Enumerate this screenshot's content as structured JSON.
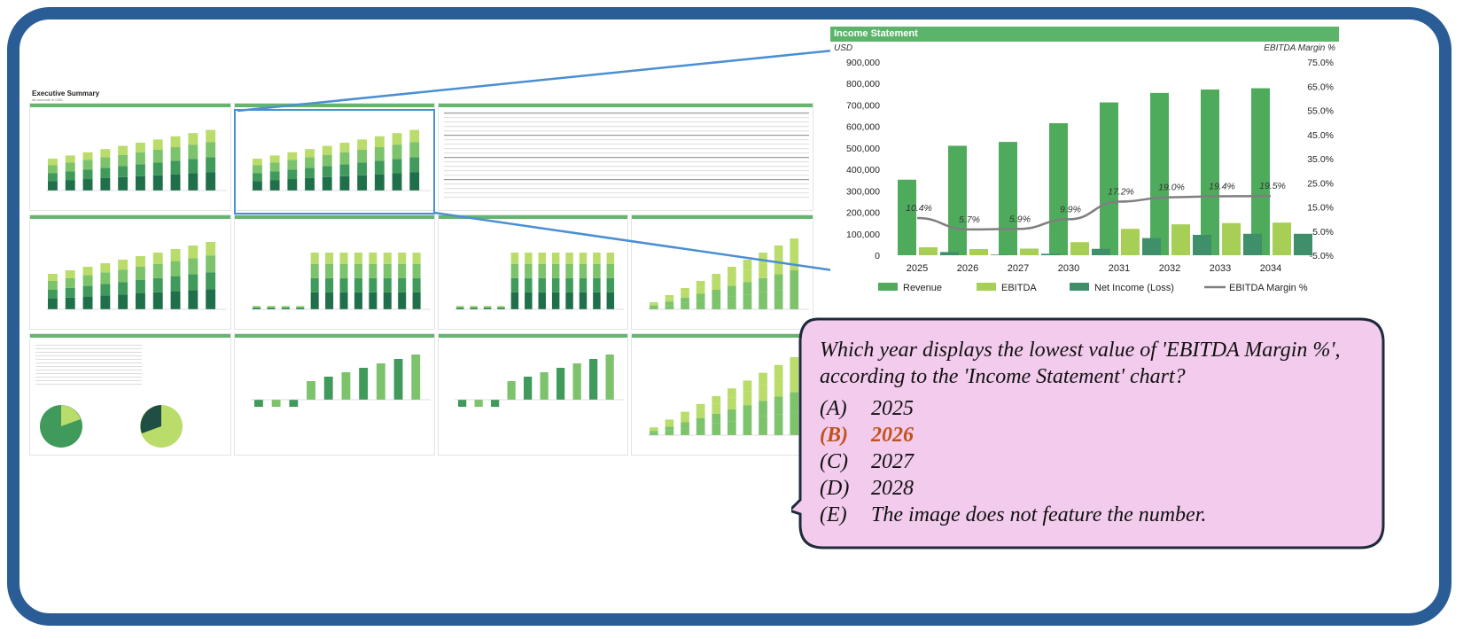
{
  "colors": {
    "frame": "#2a5d95",
    "revenue": "#4fab5c",
    "ebitda": "#a7cf55",
    "net_income": "#3f8f6b",
    "margin_line": "#7f7f7f",
    "header_green": "#5cb36a",
    "bubble_fill": "#f2cbed",
    "bubble_border": "#1f2a3a",
    "answer_highlight": "#c0531c",
    "connector": "#4a8fd3"
  },
  "dashboard": {
    "title": "Executive Summary",
    "subtitle": "All amounts in USD"
  },
  "chart_data": {
    "type": "bar",
    "title": "Income Statement",
    "y_left_label": "USD",
    "y_right_label": "EBITDA Margin %",
    "categories": [
      "2025",
      "2026",
      "2027",
      "2030",
      "2031",
      "2032",
      "2033",
      "2034"
    ],
    "ylim": [
      0,
      900000
    ],
    "y_right_lim": [
      -5.0,
      75.0
    ],
    "y_ticks": [
      "900,000",
      "800,000",
      "700,000",
      "600,000",
      "500,000",
      "400,000",
      "300,000",
      "200,000",
      "100,000",
      "0"
    ],
    "y_right_ticks": [
      "75.0%",
      "65.0%",
      "55.0%",
      "45.0%",
      "35.0%",
      "25.0%",
      "15.0%",
      "5.0%",
      "-5.0%"
    ],
    "series": [
      {
        "name": "Revenue",
        "type": "bar",
        "values": [
          352000,
          510000,
          528000,
          615000,
          712000,
          756000,
          772000,
          778000
        ]
      },
      {
        "name": "EBITDA",
        "type": "bar",
        "values": [
          37000,
          29000,
          31000,
          61000,
          123000,
          144000,
          150000,
          152000
        ]
      },
      {
        "name": "Net Income (Loss)",
        "type": "bar",
        "values": [
          15000,
          3000,
          7000,
          30000,
          80000,
          95000,
          100000,
          100000
        ]
      },
      {
        "name": "EBITDA Margin %",
        "type": "line",
        "axis": "right",
        "values": [
          10.4,
          5.7,
          5.9,
          9.9,
          17.2,
          19.0,
          19.4,
          19.5
        ]
      }
    ],
    "data_labels": [
      "10.4%",
      "5.7%",
      "5.9%",
      "9.9%",
      "17.2%",
      "19.0%",
      "19.4%",
      "19.5%"
    ],
    "legend": [
      "Revenue",
      "EBITDA",
      "Net Income (Loss)",
      "EBITDA Margin %"
    ],
    "legend_position": "bottom",
    "grid": false
  },
  "question": {
    "text": "Which year displays the lowest value of 'EBITDA Margin %', according to the 'Income Statement' chart?",
    "options": [
      {
        "letter": "(A)",
        "text": "2025",
        "selected": false
      },
      {
        "letter": "(B)",
        "text": "2026",
        "selected": true
      },
      {
        "letter": "(C)",
        "text": "2027",
        "selected": false
      },
      {
        "letter": "(D)",
        "text": "2028",
        "selected": false
      },
      {
        "letter": "(E)",
        "text": "The image does not feature the number.",
        "selected": false
      }
    ]
  }
}
